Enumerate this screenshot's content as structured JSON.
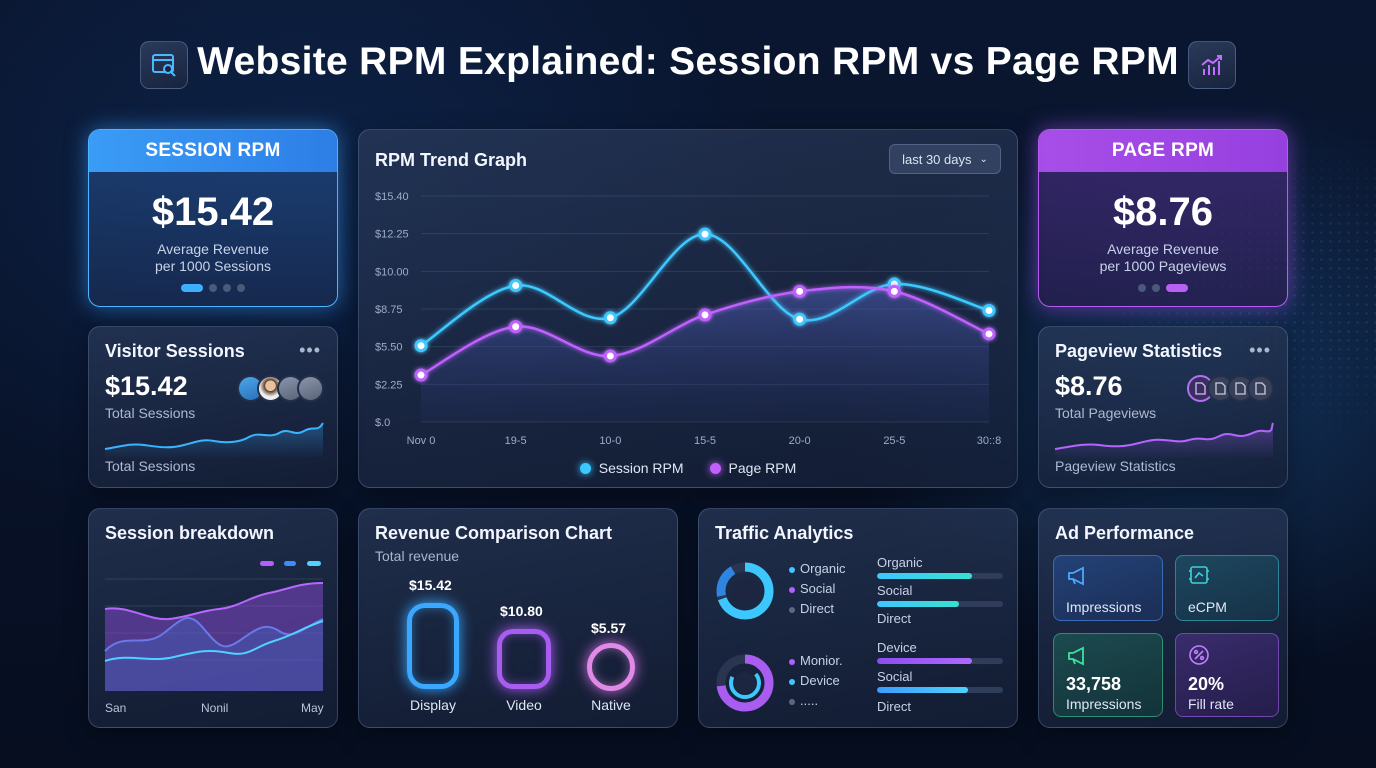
{
  "header": {
    "title": "Website RPM Explained: Session RPM vs Page RPM",
    "left_icon": "browser-search-icon",
    "right_icon": "bar-chart-growth-icon"
  },
  "session_rpm": {
    "label": "SESSION RPM",
    "value": "$15.42",
    "sub1": "Average Revenue",
    "sub2": "per 1000 Sessions",
    "accent": "#35a8ff"
  },
  "page_rpm": {
    "label": "PAGE RPM",
    "value": "$8.76",
    "sub1": "Average Revenue",
    "sub2": "per 1000 Pageviews",
    "accent": "#b44ef0"
  },
  "trend": {
    "title": "RPM Trend Graph",
    "range_label": "last 30 days",
    "legend": [
      "Session RPM",
      "Page RPM"
    ]
  },
  "visitor_sessions": {
    "title": "Visitor Sessions",
    "more": "•••",
    "value": "$15.42",
    "sub": "Total Sessions",
    "footer": "Total Sessions"
  },
  "pageview_stats": {
    "title": "Pageview Statistics",
    "more": "•••",
    "value": "$8.76",
    "sub": "Total Pageviews",
    "footer": "Pageview Statistics"
  },
  "session_breakdown": {
    "title": "Session breakdown",
    "x_labels": [
      "San",
      "Nonil",
      "May"
    ]
  },
  "revenue_comparison": {
    "title": "Revenue Comparison Chart",
    "subtitle": "Total revenue",
    "items": [
      {
        "label": "Display",
        "value": "$15.42"
      },
      {
        "label": "Video",
        "value": "$10.80"
      },
      {
        "label": "Native",
        "value": "$5.57"
      }
    ]
  },
  "traffic": {
    "title": "Traffic Analytics",
    "donut1_legend": [
      "Organic",
      "Social",
      "Direct"
    ],
    "donut2_legend": [
      "Monior.",
      "Device",
      "....."
    ],
    "bars1": [
      {
        "label": "Organic",
        "value": 0.75
      },
      {
        "label": "Social",
        "value": 0.65
      },
      {
        "label": "Direct",
        "value": null
      }
    ],
    "bars2": [
      {
        "label": "Device",
        "value": 0.75
      },
      {
        "label": "Social",
        "value": 0.72
      },
      {
        "label": "Direct",
        "value": null
      }
    ]
  },
  "ad_performance": {
    "title": "Ad Performance",
    "tiles": [
      {
        "label": "Impressions",
        "value": "",
        "icon": "megaphone-icon"
      },
      {
        "label": "eCPM",
        "value": "",
        "icon": "ecpm-chip-icon"
      },
      {
        "label": "Impressions",
        "value": "33,758",
        "icon": "megaphone-icon"
      },
      {
        "label": "Fill rate",
        "value": "20%",
        "icon": "percent-icon"
      }
    ]
  },
  "chart_data": {
    "type": "line",
    "title": "RPM Trend Graph",
    "x": [
      "Nov 0",
      "19-5",
      "10-0",
      "15-5",
      "20-0",
      "25-5",
      "30::8"
    ],
    "y_ticks": [
      "$15.40",
      "$12.25",
      "$10.00",
      "$8.75",
      "$5.50",
      "$2.25",
      "$.0"
    ],
    "ylim": [
      0,
      15.4
    ],
    "series": [
      {
        "name": "Session RPM",
        "color": "#3cc8ff",
        "values": [
          5.2,
          9.3,
          7.1,
          12.8,
          7.0,
          9.4,
          7.6
        ]
      },
      {
        "name": "Page RPM",
        "color": "#c060ff",
        "values": [
          3.2,
          6.5,
          4.5,
          7.3,
          8.9,
          8.9,
          6.0
        ]
      }
    ],
    "grid": true,
    "legend_position": "bottom"
  }
}
